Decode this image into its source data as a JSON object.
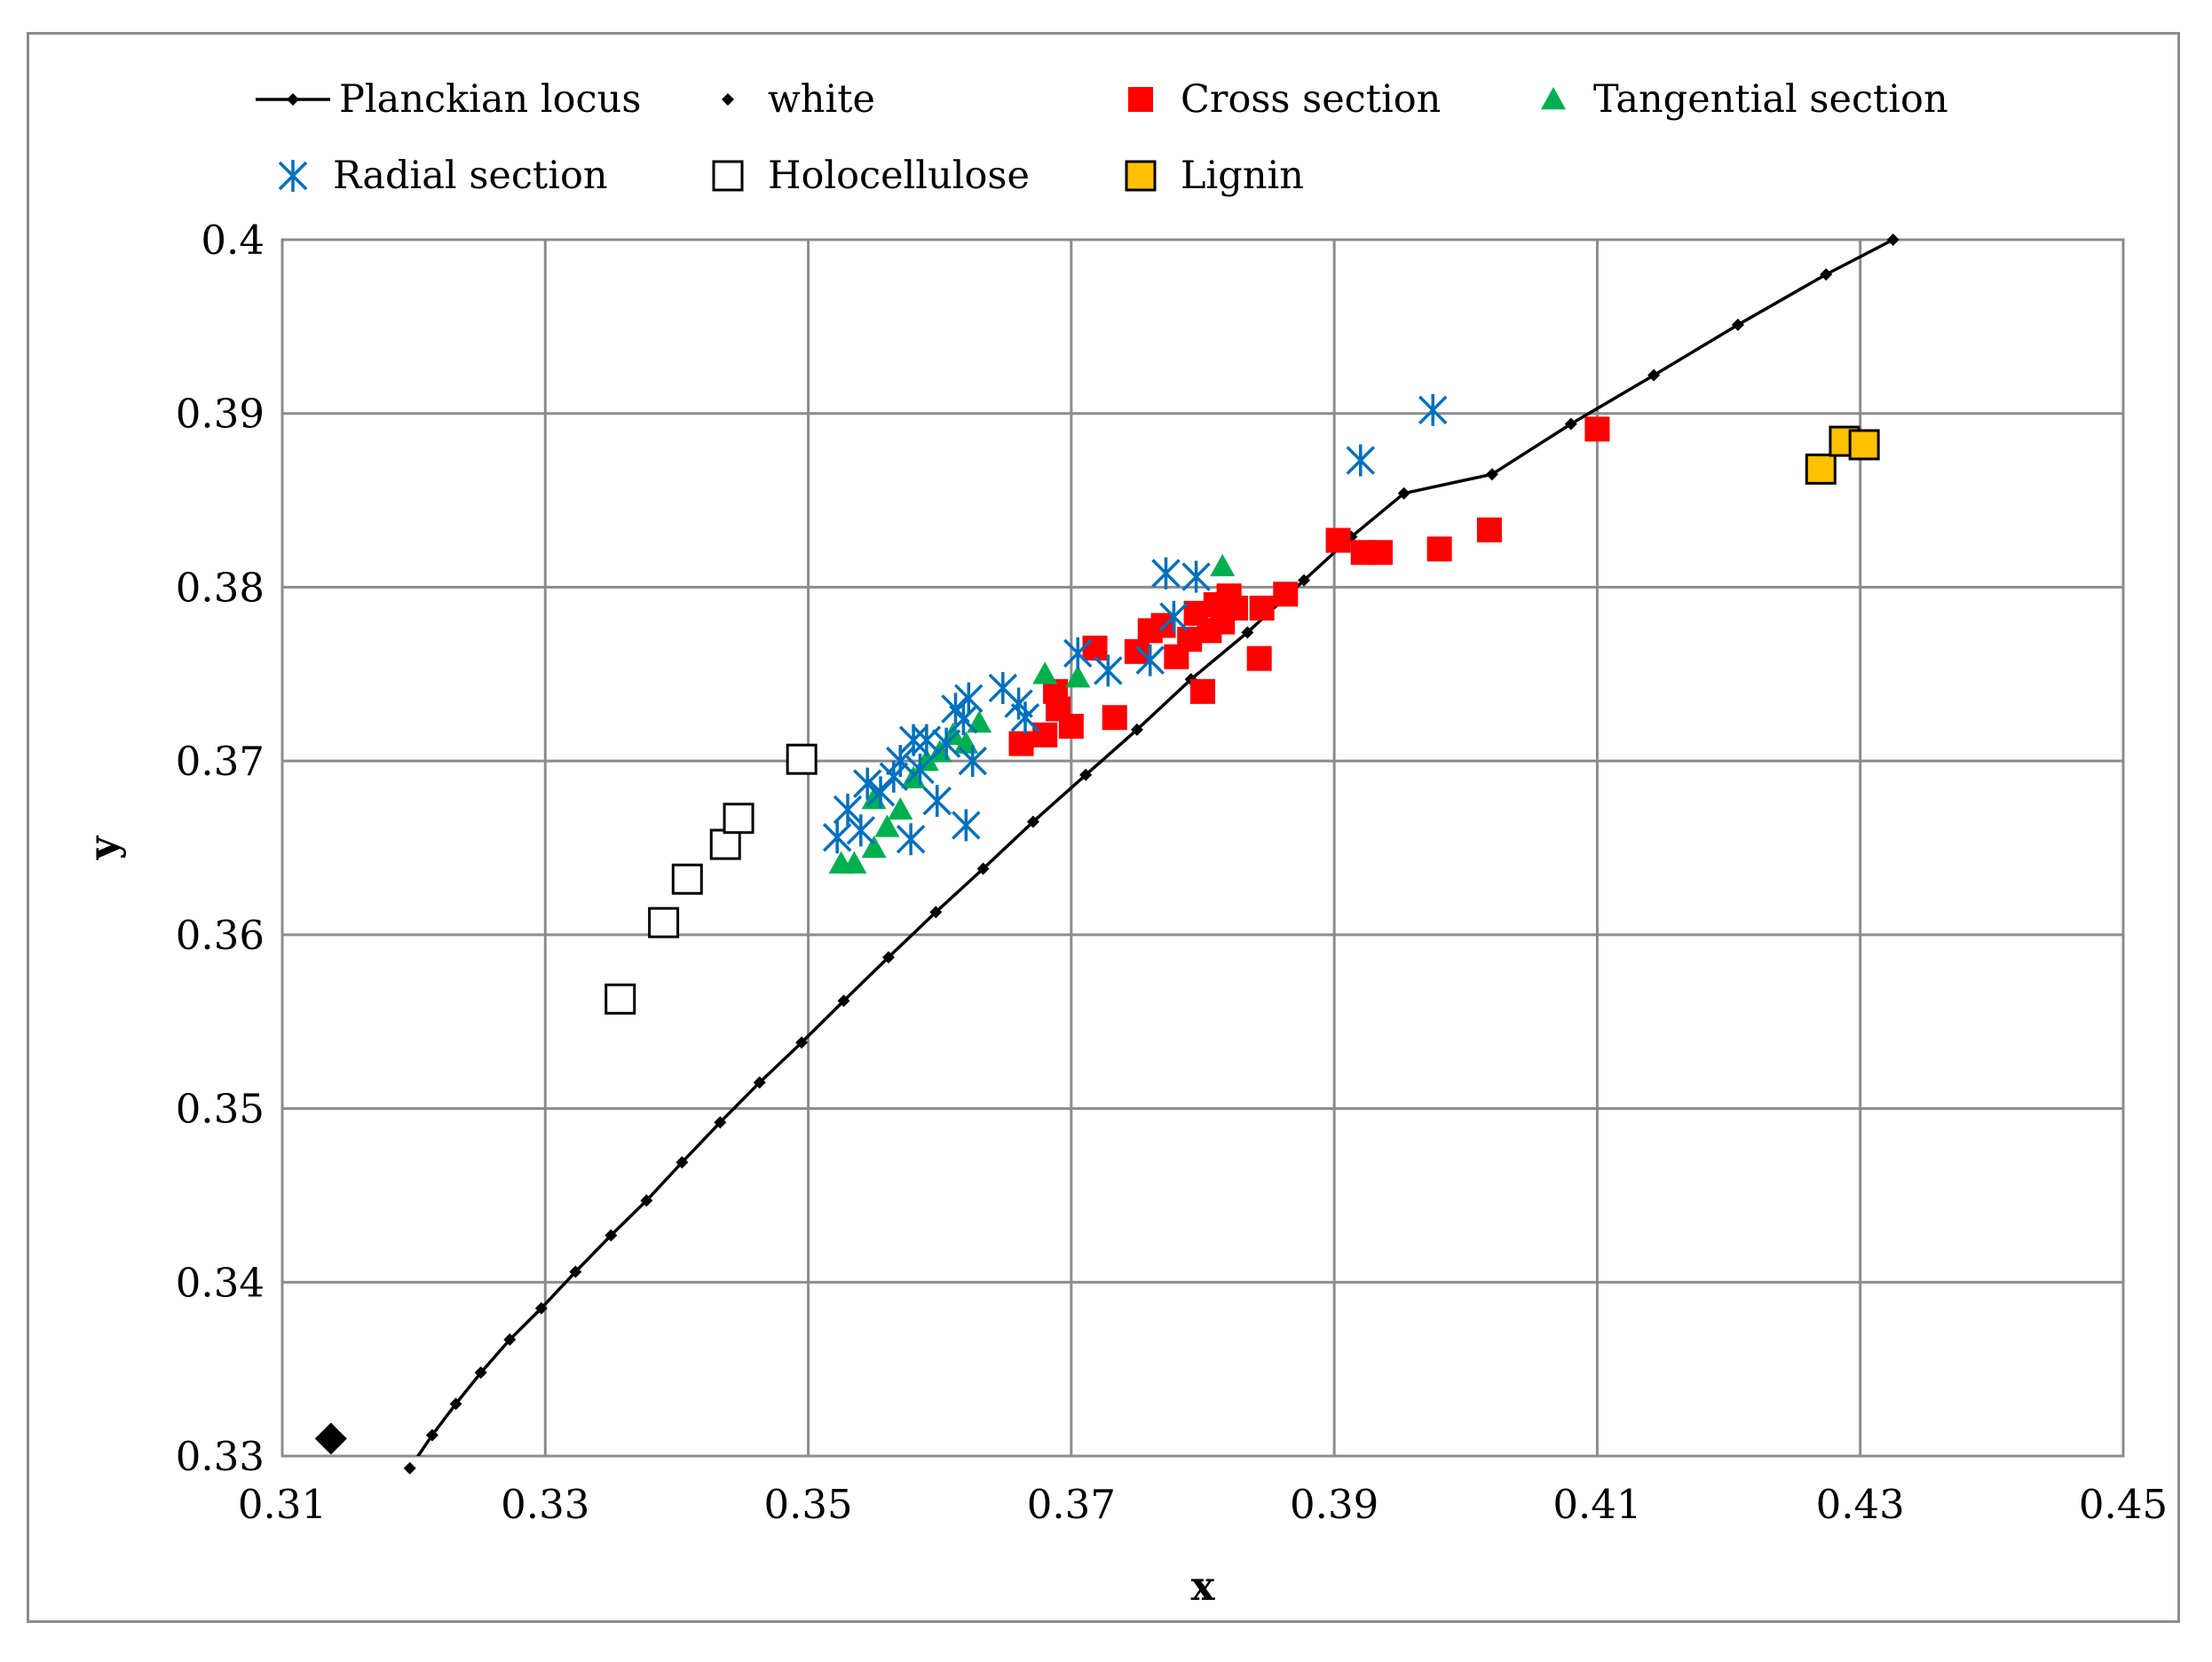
{
  "chart_data": {
    "type": "scatter",
    "title": "",
    "xlabel": "x",
    "ylabel": "y",
    "xlim": [
      0.31,
      0.45
    ],
    "ylim": [
      0.33,
      0.4
    ],
    "x_ticks": [
      "0.31",
      "0.33",
      "0.35",
      "0.37",
      "0.39",
      "0.41",
      "0.43",
      "0.45"
    ],
    "y_ticks": [
      "0.33",
      "0.34",
      "0.35",
      "0.36",
      "0.37",
      "0.38",
      "0.39",
      "0.4"
    ],
    "grid": true,
    "legend_position": "top",
    "series": [
      {
        "name": "Planckian locus",
        "marker": "diamond-line",
        "color": "#000000",
        "points": [
          [
            0.3197,
            0.3293
          ],
          [
            0.3214,
            0.3312
          ],
          [
            0.3232,
            0.333
          ],
          [
            0.3251,
            0.3348
          ],
          [
            0.3273,
            0.3367
          ],
          [
            0.3297,
            0.3385
          ],
          [
            0.3323,
            0.3406
          ],
          [
            0.335,
            0.3427
          ],
          [
            0.3377,
            0.3447
          ],
          [
            0.3404,
            0.3469
          ],
          [
            0.3433,
            0.3492
          ],
          [
            0.3463,
            0.3515
          ],
          [
            0.3495,
            0.3538
          ],
          [
            0.3527,
            0.3562
          ],
          [
            0.3561,
            0.3587
          ],
          [
            0.3597,
            0.3613
          ],
          [
            0.3633,
            0.3638
          ],
          [
            0.3671,
            0.3665
          ],
          [
            0.3711,
            0.3692
          ],
          [
            0.375,
            0.3718
          ],
          [
            0.3791,
            0.3747
          ],
          [
            0.3834,
            0.3774
          ],
          [
            0.3877,
            0.3804
          ],
          [
            0.3913,
            0.3829
          ],
          [
            0.3953,
            0.3854
          ],
          [
            0.402,
            0.3865
          ],
          [
            0.408,
            0.3894
          ],
          [
            0.4143,
            0.3922
          ],
          [
            0.4207,
            0.3951
          ],
          [
            0.4274,
            0.398
          ],
          [
            0.4325,
            0.4
          ]
        ]
      },
      {
        "name": "white",
        "marker": "diamond",
        "color": "#000000",
        "points": [
          [
            0.3137,
            0.331
          ]
        ]
      },
      {
        "name": "Cross section",
        "marker": "square",
        "color": "#ff0000",
        "points": [
          [
            0.3662,
            0.371
          ],
          [
            0.368,
            0.3715
          ],
          [
            0.37,
            0.372
          ],
          [
            0.369,
            0.373
          ],
          [
            0.3688,
            0.374
          ],
          [
            0.3733,
            0.3725
          ],
          [
            0.3718,
            0.3765
          ],
          [
            0.375,
            0.3763
          ],
          [
            0.376,
            0.3775
          ],
          [
            0.377,
            0.3778
          ],
          [
            0.378,
            0.376
          ],
          [
            0.379,
            0.377
          ],
          [
            0.38,
            0.374
          ],
          [
            0.381,
            0.379
          ],
          [
            0.382,
            0.3795
          ],
          [
            0.3805,
            0.3775
          ],
          [
            0.3795,
            0.3785
          ],
          [
            0.3815,
            0.378
          ],
          [
            0.3825,
            0.3788
          ],
          [
            0.3845,
            0.3788
          ],
          [
            0.3863,
            0.3796
          ],
          [
            0.3843,
            0.3759
          ],
          [
            0.3903,
            0.3827
          ],
          [
            0.3922,
            0.382
          ],
          [
            0.3935,
            0.382
          ],
          [
            0.398,
            0.3822
          ],
          [
            0.4018,
            0.3833
          ],
          [
            0.41,
            0.3891
          ]
        ]
      },
      {
        "name": "Tangential section",
        "marker": "triangle",
        "color": "#00b050",
        "points": [
          [
            0.3525,
            0.3641
          ],
          [
            0.3535,
            0.3641
          ],
          [
            0.355,
            0.365
          ],
          [
            0.356,
            0.3662
          ],
          [
            0.355,
            0.3678
          ],
          [
            0.357,
            0.3672
          ],
          [
            0.358,
            0.369
          ],
          [
            0.359,
            0.37
          ],
          [
            0.36,
            0.3705
          ],
          [
            0.361,
            0.3715
          ],
          [
            0.362,
            0.371
          ],
          [
            0.363,
            0.3722
          ],
          [
            0.368,
            0.375
          ],
          [
            0.3705,
            0.3748
          ],
          [
            0.3815,
            0.3812
          ]
        ]
      },
      {
        "name": "Radial section",
        "marker": "asterisk",
        "color": "#0070c0",
        "points": [
          [
            0.3522,
            0.3656
          ],
          [
            0.353,
            0.3672
          ],
          [
            0.354,
            0.366
          ],
          [
            0.3545,
            0.3687
          ],
          [
            0.3555,
            0.3682
          ],
          [
            0.3565,
            0.3691
          ],
          [
            0.357,
            0.37
          ],
          [
            0.3578,
            0.3655
          ],
          [
            0.358,
            0.3712
          ],
          [
            0.3585,
            0.3695
          ],
          [
            0.359,
            0.3712
          ],
          [
            0.3598,
            0.3677
          ],
          [
            0.3605,
            0.371
          ],
          [
            0.3612,
            0.373
          ],
          [
            0.3618,
            0.3724
          ],
          [
            0.362,
            0.3663
          ],
          [
            0.3622,
            0.3736
          ],
          [
            0.3625,
            0.37
          ],
          [
            0.3648,
            0.3742
          ],
          [
            0.366,
            0.3733
          ],
          [
            0.3665,
            0.3725
          ],
          [
            0.3705,
            0.3762
          ],
          [
            0.3728,
            0.3752
          ],
          [
            0.376,
            0.3758
          ],
          [
            0.3772,
            0.3808
          ],
          [
            0.3778,
            0.3783
          ],
          [
            0.3795,
            0.3806
          ],
          [
            0.392,
            0.3873
          ],
          [
            0.3975,
            0.3902
          ]
        ]
      },
      {
        "name": "Holocellulose",
        "marker": "open-square",
        "color": "#000000",
        "points": [
          [
            0.3357,
            0.3563
          ],
          [
            0.339,
            0.3607
          ],
          [
            0.3408,
            0.3632
          ],
          [
            0.3437,
            0.3652
          ],
          [
            0.3447,
            0.3667
          ],
          [
            0.3495,
            0.3701
          ]
        ]
      },
      {
        "name": "Lignin",
        "marker": "square-outlined",
        "color": "#ffc000",
        "points": [
          [
            0.427,
            0.3868
          ],
          [
            0.4288,
            0.3884
          ],
          [
            0.4303,
            0.3882
          ]
        ]
      }
    ]
  }
}
